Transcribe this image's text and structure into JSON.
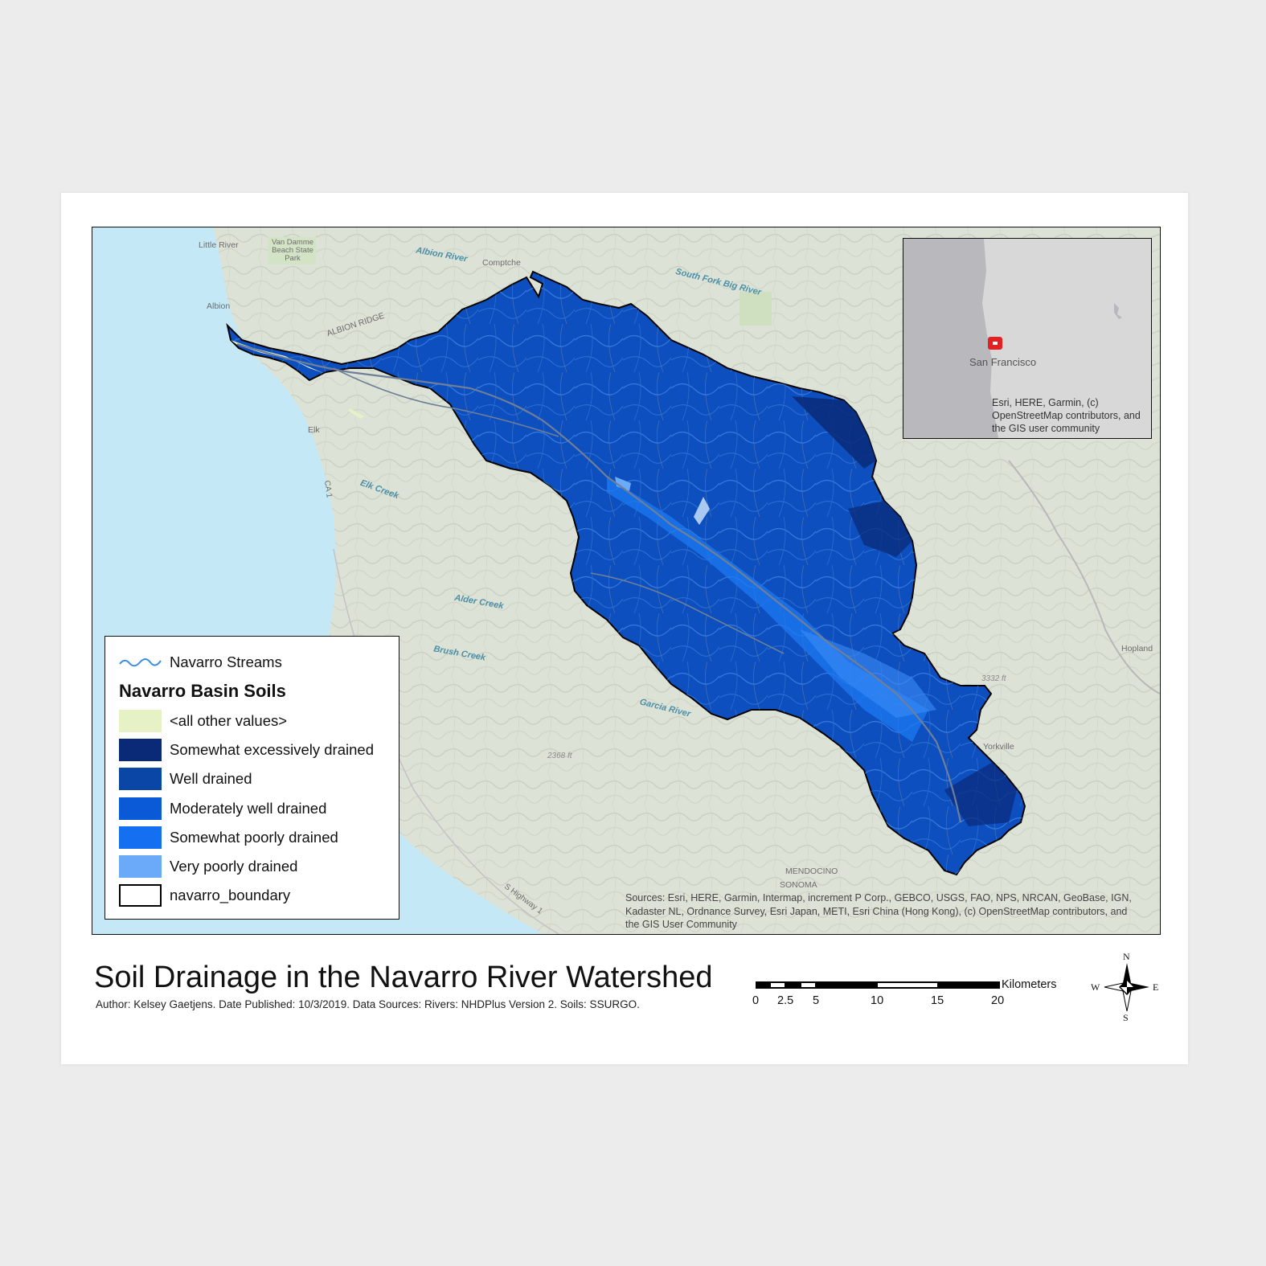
{
  "map": {
    "places": [
      "Little River",
      "Van Damme Beach State Park",
      "Comptche",
      "Albion",
      "ALBION RIDGE",
      "Elk",
      "Yorkville",
      "Hopland",
      "MENDOCINO",
      "SONOMA"
    ],
    "waters": [
      "Albion River",
      "South Fork Big River",
      "Elk Creek",
      "Alder Creek",
      "Brush Creek",
      "Garcia River"
    ],
    "elevations": [
      "3332 ft",
      "2368 ft"
    ],
    "roads": [
      "CA 1",
      "S Highway 1"
    ],
    "sources": "Sources: Esri, HERE, Garmin, Intermap, increment P Corp., GEBCO, USGS, FAO, NPS, NRCAN, GeoBase, IGN, Kadaster NL, Ordnance Survey, Esri Japan, METI, Esri China (Hong Kong), (c) OpenStreetMap contributors, and the GIS User Community"
  },
  "inset": {
    "city": "San Francisco",
    "credit": "Esri, HERE, Garmin, (c) OpenStreetMap contributors, and the GIS user community"
  },
  "legend": {
    "streams_label": "Navarro Streams",
    "title": "Navarro Basin Soils",
    "items": [
      {
        "label": "<all other values>",
        "color": "#e6f2c6"
      },
      {
        "label": "Somewhat excessively drained",
        "color": "#0a2a78"
      },
      {
        "label": "Well drained",
        "color": "#0a46a6"
      },
      {
        "label": "Moderately well drained",
        "color": "#0a5ad8"
      },
      {
        "label": "Somewhat poorly drained",
        "color": "#1470f0"
      },
      {
        "label": "Very poorly drained",
        "color": "#6aaaf8"
      }
    ],
    "boundary_label": "navarro_boundary"
  },
  "title": "Soil Drainage in the Navarro River Watershed",
  "subtitle": "Author: Kelsey Gaetjens. Date Published: 10/3/2019. Data Sources: Rivers: NHDPlus Version 2. Soils: SSURGO.",
  "scale": {
    "labels": [
      "0",
      "2.5",
      "5",
      "10",
      "15",
      "20"
    ],
    "unit": "Kilometers"
  },
  "compass": {
    "n": "N",
    "s": "S",
    "e": "E",
    "w": "W"
  }
}
